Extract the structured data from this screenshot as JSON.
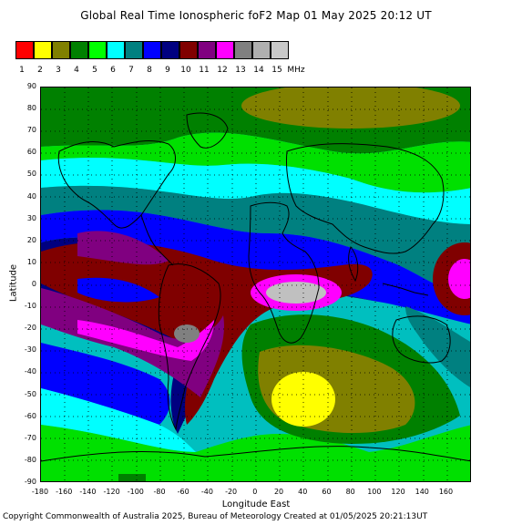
{
  "title": "Global Real Time Ionospheric foF2 Map   01 May 2025 20:12 UT",
  "legend": {
    "unit": "MHz",
    "items": [
      {
        "label": "1",
        "color": "#ff0000"
      },
      {
        "label": "2",
        "color": "#ffff00"
      },
      {
        "label": "3",
        "color": "#808000"
      },
      {
        "label": "4",
        "color": "#008000"
      },
      {
        "label": "5",
        "color": "#00ff00"
      },
      {
        "label": "6",
        "color": "#00ffff"
      },
      {
        "label": "7",
        "color": "#008080"
      },
      {
        "label": "8",
        "color": "#0000ff"
      },
      {
        "label": "9",
        "color": "#000080"
      },
      {
        "label": "10",
        "color": "#800000"
      },
      {
        "label": "11",
        "color": "#800080"
      },
      {
        "label": "12",
        "color": "#ff00ff"
      },
      {
        "label": "13",
        "color": "#808080"
      },
      {
        "label": "14",
        "color": "#b0b0b0"
      },
      {
        "label": "15",
        "color": "#c8c8c8"
      }
    ]
  },
  "axes": {
    "ylabel": "Latitude",
    "xlabel": "Longitude East",
    "yticks": [
      "90",
      "80",
      "70",
      "60",
      "50",
      "40",
      "30",
      "20",
      "10",
      "0",
      "-10",
      "-20",
      "-30",
      "-40",
      "-50",
      "-60",
      "-70",
      "-80",
      "-90"
    ],
    "xticks": [
      "-180",
      "-160",
      "-140",
      "-120",
      "-100",
      "-80",
      "-60",
      "-40",
      "-20",
      "0",
      "20",
      "40",
      "60",
      "80",
      "100",
      "120",
      "140",
      "160"
    ]
  },
  "footer": "Copyright Commonwealth of Australia 2025, Bureau of Meteorology    Created at 01/05/2025 20:21:13UT"
}
